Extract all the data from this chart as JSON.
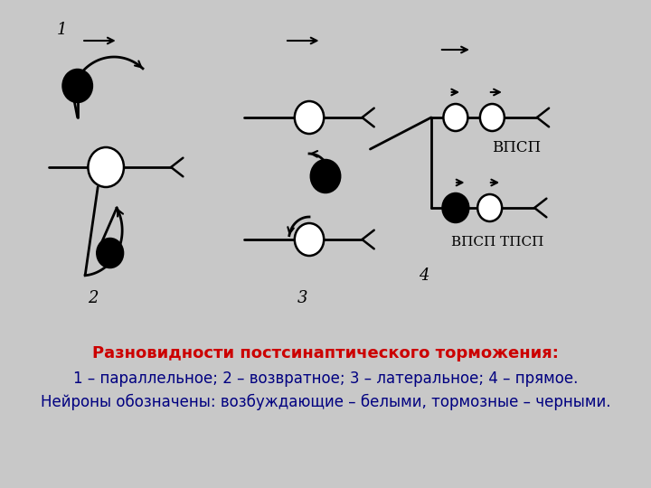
{
  "bg_color": "#c8c8c8",
  "title_line1": "Разновидности постсинаптического торможения:",
  "title_line2": "1 – параллельное; 2 – возвратное; 3 – латеральное; 4 – прямое.",
  "title_line3": "Нейроны обозначены: возбуждающие – белыми, тормозные – черными.",
  "title_color": "#cc0000",
  "subtitle_color": "#000080",
  "vpsp_label": "ВПСП",
  "vpsp_tpsp_label": "ВПСП ТПСП"
}
